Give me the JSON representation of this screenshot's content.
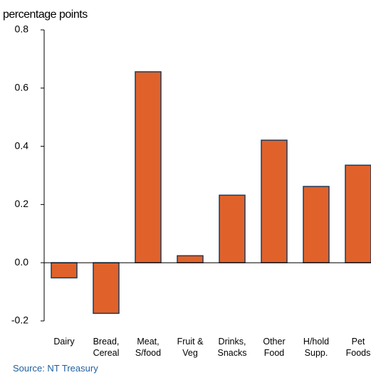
{
  "chart_data": {
    "type": "bar",
    "ylabel": "percentage points",
    "categories": [
      "Dairy",
      "Bread,\nCereal",
      "Meat,\nS/food",
      "Fruit &\nVeg",
      "Drinks,\nSnacks",
      "Other\nFood",
      "H/hold\nSupp.",
      "Pet\nFoods"
    ],
    "values": [
      -0.052,
      -0.174,
      0.656,
      0.024,
      0.232,
      0.421,
      0.262,
      0.335
    ],
    "color": "#e0622a",
    "edgecolor": "#1f3a5a",
    "ylim": [
      -0.2,
      0.8
    ],
    "yticks": [
      -0.2,
      {
        "value": 0,
        "label": "0.0"
      },
      0.2,
      0.4,
      0.6,
      0.8
    ],
    "grid": false,
    "source": "Source: NT Treasury"
  }
}
